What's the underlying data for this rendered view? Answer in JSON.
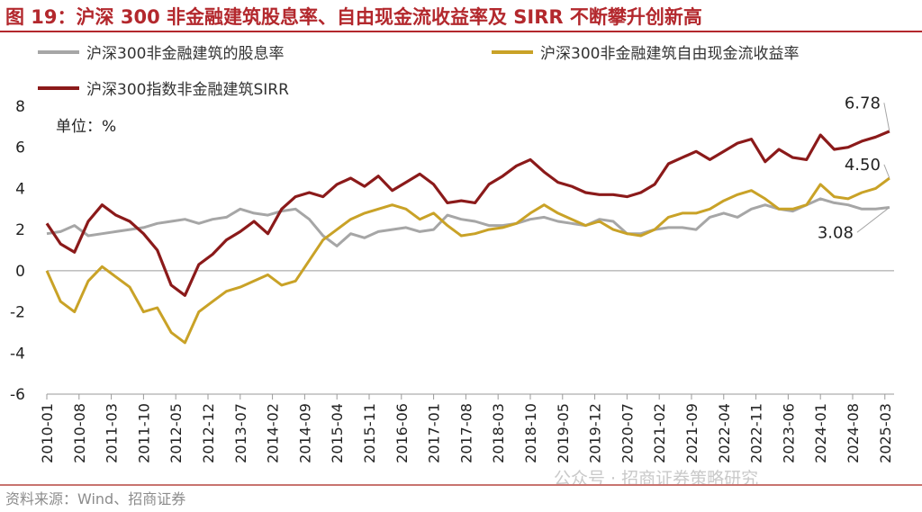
{
  "figure_title": "图 19：沪深 300 非金融建筑股息率、自由现金流收益率及 SIRR 不断攀升创新高",
  "source_note": "资料来源：Wind、招商证券",
  "watermark": "公众号 · 招商证券策略研究",
  "chart_data": {
    "type": "line",
    "unit_label": "单位：%",
    "ylim": [
      -6,
      8
    ],
    "yticks": [
      -6,
      -4,
      -2,
      0,
      2,
      4,
      6,
      8
    ],
    "xlim": [
      "2010-01",
      "2025-05"
    ],
    "xtick_labels": [
      "2010-01",
      "2010-08",
      "2011-03",
      "2011-10",
      "2012-05",
      "2012-12",
      "2013-07",
      "2014-02",
      "2014-09",
      "2015-04",
      "2015-11",
      "2016-06",
      "2017-01",
      "2017-08",
      "2018-03",
      "2018-10",
      "2019-05",
      "2019-12",
      "2020-07",
      "2021-02",
      "2021-09",
      "2022-04",
      "2022-11",
      "2023-06",
      "2024-01",
      "2024-08",
      "2025-03"
    ],
    "grid": false,
    "legend_position": "top",
    "series": [
      {
        "name": "沪深300非金融建筑的股息率",
        "color": "#a6a6a6",
        "end_label": "3.08",
        "x": [
          "2010-01",
          "2010-04",
          "2010-07",
          "2010-10",
          "2011-01",
          "2011-04",
          "2011-07",
          "2011-10",
          "2012-01",
          "2012-04",
          "2012-07",
          "2012-10",
          "2013-01",
          "2013-04",
          "2013-07",
          "2013-10",
          "2014-01",
          "2014-04",
          "2014-07",
          "2014-10",
          "2015-01",
          "2015-04",
          "2015-07",
          "2015-10",
          "2016-01",
          "2016-04",
          "2016-07",
          "2016-10",
          "2017-01",
          "2017-04",
          "2017-07",
          "2017-10",
          "2018-01",
          "2018-04",
          "2018-07",
          "2018-10",
          "2019-01",
          "2019-04",
          "2019-07",
          "2019-10",
          "2020-01",
          "2020-04",
          "2020-07",
          "2020-10",
          "2021-01",
          "2021-04",
          "2021-07",
          "2021-10",
          "2022-01",
          "2022-04",
          "2022-07",
          "2022-10",
          "2023-01",
          "2023-04",
          "2023-07",
          "2023-10",
          "2024-01",
          "2024-04",
          "2024-07",
          "2024-10",
          "2025-01",
          "2025-04"
        ],
        "values": [
          1.8,
          1.9,
          2.2,
          1.7,
          1.8,
          1.9,
          2.0,
          2.1,
          2.3,
          2.4,
          2.5,
          2.3,
          2.5,
          2.6,
          3.0,
          2.8,
          2.7,
          2.9,
          3.0,
          2.5,
          1.7,
          1.2,
          1.8,
          1.6,
          1.9,
          2.0,
          2.1,
          1.9,
          2.0,
          2.7,
          2.5,
          2.4,
          2.2,
          2.2,
          2.3,
          2.5,
          2.6,
          2.4,
          2.3,
          2.2,
          2.5,
          2.4,
          1.8,
          1.8,
          2.0,
          2.1,
          2.1,
          2.0,
          2.6,
          2.8,
          2.6,
          3.0,
          3.2,
          3.0,
          2.9,
          3.2,
          3.5,
          3.3,
          3.2,
          3.0,
          3.0,
          3.08
        ]
      },
      {
        "name": "沪深300非金融建筑自由现金流收益率",
        "color": "#c9a227",
        "end_label": "4.50",
        "x": [
          "2010-01",
          "2010-04",
          "2010-07",
          "2010-10",
          "2011-01",
          "2011-04",
          "2011-07",
          "2011-10",
          "2012-01",
          "2012-04",
          "2012-07",
          "2012-10",
          "2013-01",
          "2013-04",
          "2013-07",
          "2013-10",
          "2014-01",
          "2014-04",
          "2014-07",
          "2014-10",
          "2015-01",
          "2015-04",
          "2015-07",
          "2015-10",
          "2016-01",
          "2016-04",
          "2016-07",
          "2016-10",
          "2017-01",
          "2017-04",
          "2017-07",
          "2017-10",
          "2018-01",
          "2018-04",
          "2018-07",
          "2018-10",
          "2019-01",
          "2019-04",
          "2019-07",
          "2019-10",
          "2020-01",
          "2020-04",
          "2020-07",
          "2020-10",
          "2021-01",
          "2021-04",
          "2021-07",
          "2021-10",
          "2022-01",
          "2022-04",
          "2022-07",
          "2022-10",
          "2023-01",
          "2023-04",
          "2023-07",
          "2023-10",
          "2024-01",
          "2024-04",
          "2024-07",
          "2024-10",
          "2025-01",
          "2025-04"
        ],
        "values": [
          0.0,
          -1.5,
          -2.0,
          -0.5,
          0.2,
          -0.3,
          -0.8,
          -2.0,
          -1.8,
          -3.0,
          -3.5,
          -2.0,
          -1.5,
          -1.0,
          -0.8,
          -0.5,
          -0.2,
          -0.7,
          -0.5,
          0.5,
          1.5,
          2.0,
          2.5,
          2.8,
          3.0,
          3.2,
          3.0,
          2.5,
          2.8,
          2.2,
          1.7,
          1.8,
          2.0,
          2.1,
          2.3,
          2.8,
          3.2,
          2.8,
          2.5,
          2.2,
          2.4,
          2.0,
          1.8,
          1.7,
          2.0,
          2.6,
          2.8,
          2.8,
          3.0,
          3.4,
          3.7,
          3.9,
          3.5,
          3.0,
          3.0,
          3.2,
          4.2,
          3.6,
          3.5,
          3.8,
          4.0,
          4.5
        ]
      },
      {
        "name": "沪深300指数非金融建筑SIRR",
        "color": "#8b1a1a",
        "end_label": "6.78",
        "x": [
          "2010-01",
          "2010-04",
          "2010-07",
          "2010-10",
          "2011-01",
          "2011-04",
          "2011-07",
          "2011-10",
          "2012-01",
          "2012-04",
          "2012-07",
          "2012-10",
          "2013-01",
          "2013-04",
          "2013-07",
          "2013-10",
          "2014-01",
          "2014-04",
          "2014-07",
          "2014-10",
          "2015-01",
          "2015-04",
          "2015-07",
          "2015-10",
          "2016-01",
          "2016-04",
          "2016-07",
          "2016-10",
          "2017-01",
          "2017-04",
          "2017-07",
          "2017-10",
          "2018-01",
          "2018-04",
          "2018-07",
          "2018-10",
          "2019-01",
          "2019-04",
          "2019-07",
          "2019-10",
          "2020-01",
          "2020-04",
          "2020-07",
          "2020-10",
          "2021-01",
          "2021-04",
          "2021-07",
          "2021-10",
          "2022-01",
          "2022-04",
          "2022-07",
          "2022-10",
          "2023-01",
          "2023-04",
          "2023-07",
          "2023-10",
          "2024-01",
          "2024-04",
          "2024-07",
          "2024-10",
          "2025-01",
          "2025-04"
        ],
        "values": [
          2.3,
          1.3,
          0.9,
          2.4,
          3.2,
          2.7,
          2.4,
          1.8,
          1.0,
          -0.7,
          -1.2,
          0.3,
          0.8,
          1.5,
          1.9,
          2.4,
          1.8,
          3.0,
          3.6,
          3.8,
          3.6,
          4.2,
          4.5,
          4.1,
          4.6,
          3.9,
          4.3,
          4.7,
          4.2,
          3.3,
          3.4,
          3.3,
          4.2,
          4.6,
          5.1,
          5.4,
          4.8,
          4.3,
          4.1,
          3.8,
          3.7,
          3.7,
          3.6,
          3.8,
          4.2,
          5.2,
          5.5,
          5.8,
          5.4,
          5.8,
          6.2,
          6.4,
          5.3,
          5.9,
          5.5,
          5.4,
          6.6,
          5.9,
          6.0,
          6.3,
          6.5,
          6.78
        ]
      }
    ]
  }
}
